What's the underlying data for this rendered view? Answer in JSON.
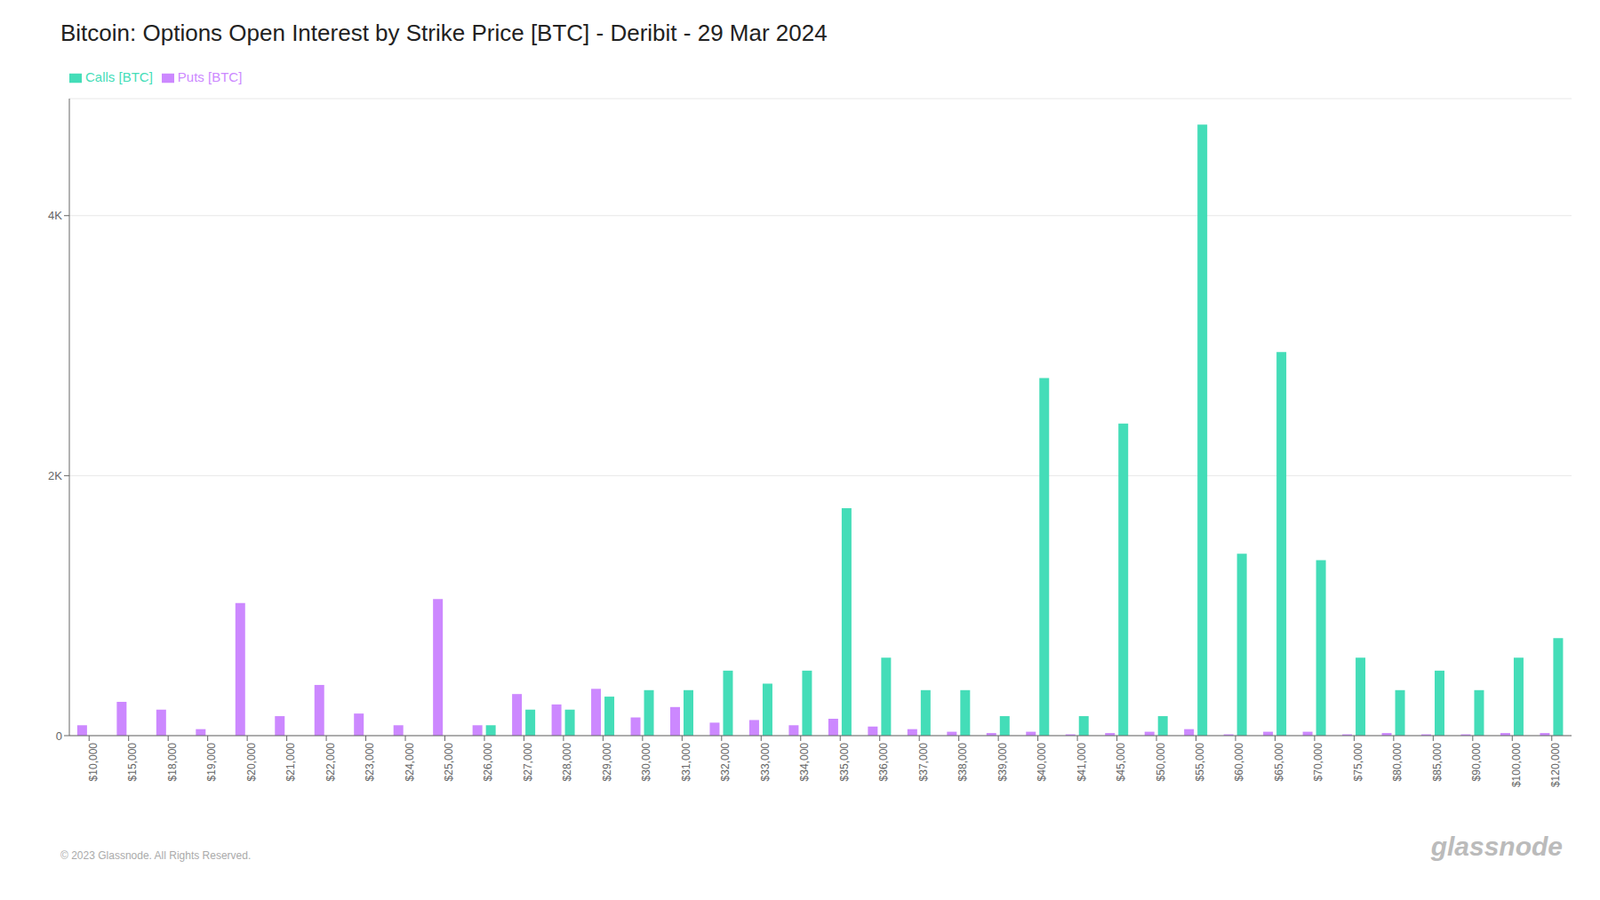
{
  "chart_data": {
    "type": "bar",
    "title": "Bitcoin: Options Open Interest by Strike Price [BTC] - Deribit - 29 Mar 2024",
    "categories": [
      "$10,000",
      "$15,000",
      "$18,000",
      "$19,000",
      "$20,000",
      "$21,000",
      "$22,000",
      "$23,000",
      "$24,000",
      "$25,000",
      "$26,000",
      "$27,000",
      "$28,000",
      "$29,000",
      "$30,000",
      "$31,000",
      "$32,000",
      "$33,000",
      "$34,000",
      "$35,000",
      "$36,000",
      "$37,000",
      "$38,000",
      "$39,000",
      "$40,000",
      "$41,000",
      "$45,000",
      "$50,000",
      "$55,000",
      "$60,000",
      "$65,000",
      "$70,000",
      "$75,000",
      "$80,000",
      "$85,000",
      "$90,000",
      "$100,000",
      "$120,000"
    ],
    "series": [
      {
        "name": "Puts [BTC]",
        "color": "#cc88ff",
        "values": [
          80,
          260,
          200,
          50,
          1020,
          150,
          390,
          170,
          80,
          1050,
          80,
          320,
          240,
          360,
          140,
          220,
          100,
          120,
          80,
          130,
          70,
          50,
          30,
          20,
          30,
          10,
          20,
          30,
          50,
          10,
          30,
          30,
          10,
          20,
          10,
          10,
          20,
          20
        ]
      },
      {
        "name": "Calls [BTC]",
        "color": "#44ddb8",
        "values": [
          0,
          0,
          0,
          0,
          0,
          0,
          0,
          0,
          0,
          0,
          80,
          200,
          200,
          300,
          350,
          350,
          500,
          400,
          500,
          1750,
          600,
          350,
          350,
          150,
          2750,
          150,
          2400,
          150,
          4700,
          1400,
          2950,
          1350,
          600,
          350,
          500,
          350,
          600,
          750
        ]
      }
    ],
    "ylim": [
      0,
      4900
    ],
    "yticks": [
      0,
      {
        "value": 2000,
        "label": "2K"
      },
      {
        "value": 4000,
        "label": "4K"
      }
    ],
    "grid": true,
    "legend": "upper left",
    "annotations": [
      "© 2023 Glassnode. All Rights Reserved.",
      "glassnode"
    ]
  }
}
